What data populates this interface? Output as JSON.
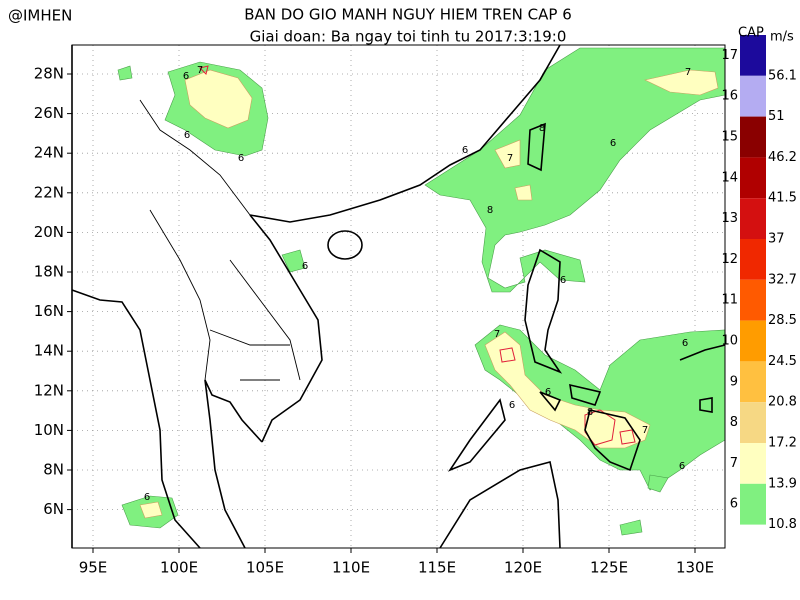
{
  "header": {
    "source": "@IMHEN",
    "title": "BAN DO GIO MANH NGUY HIEM TREN CAP 6",
    "subtitle": "Giai doan: Ba ngay toi tinh tu 2017:3:19:0"
  },
  "map": {
    "lat_labels": [
      "28N",
      "26N",
      "24N",
      "22N",
      "20N",
      "18N",
      "16N",
      "14N",
      "12N",
      "10N",
      "8N",
      "6N"
    ],
    "lon_labels": [
      "95E",
      "100E",
      "105E",
      "110E",
      "115E",
      "120E",
      "125E",
      "130E"
    ],
    "contour_labels": [
      7,
      6,
      6,
      6,
      6,
      8,
      7,
      6,
      8,
      6,
      7,
      6,
      6,
      6,
      7,
      8,
      6,
      7,
      6,
      6
    ]
  },
  "colorbar": {
    "cap_title": "CAP",
    "unit_title": "m/s",
    "levels": [
      {
        "cap": 17,
        "color": "#1c0a9c"
      },
      {
        "cap": 16,
        "color": "#b4acf2"
      },
      {
        "cap": 15,
        "color": "#8a0000"
      },
      {
        "cap": 14,
        "color": "#b00000"
      },
      {
        "cap": 13,
        "color": "#d41010"
      },
      {
        "cap": 12,
        "color": "#f02800"
      },
      {
        "cap": 11,
        "color": "#ff5a00"
      },
      {
        "cap": 10,
        "color": "#ff9c00"
      },
      {
        "cap": 9,
        "color": "#ffc040"
      },
      {
        "cap": 8,
        "color": "#f6d884"
      },
      {
        "cap": 7,
        "color": "#ffffc0"
      },
      {
        "cap": 6,
        "color": "#80f080"
      }
    ],
    "speeds": [
      56.1,
      51,
      46.2,
      41.5,
      37,
      32.7,
      28.5,
      24.5,
      20.8,
      17.2,
      13.9,
      10.8
    ]
  }
}
